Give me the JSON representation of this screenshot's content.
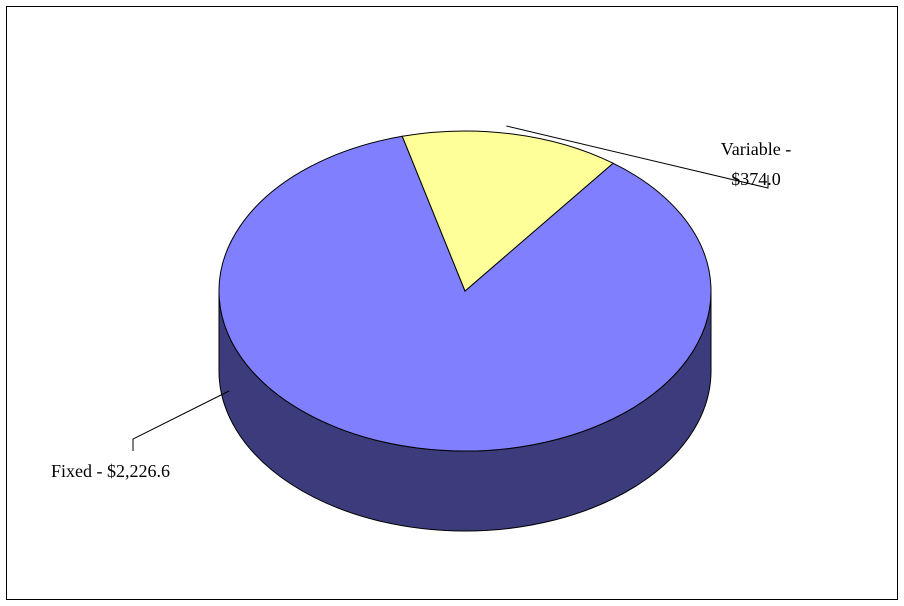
{
  "chart_data": {
    "type": "pie",
    "title": "",
    "style": "3d",
    "legend": "none",
    "slices": [
      {
        "label": "Fixed - $2,226.6",
        "value": 2226.6,
        "color": "#8080ff",
        "side_color": "#3c3c7c"
      },
      {
        "label_lines": [
          "Variable -",
          "$374.0"
        ],
        "value": 374.0,
        "color": "#ffff99",
        "side_color": "#a3a35c"
      }
    ]
  }
}
